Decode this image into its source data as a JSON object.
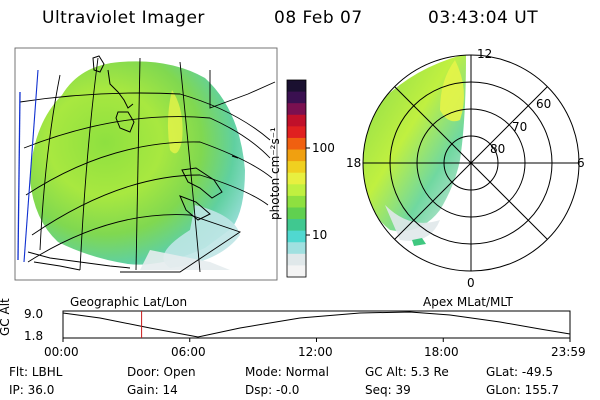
{
  "header": {
    "title": "Ultraviolet Imager",
    "date": "08 Feb 07",
    "time": "03:43:04 UT"
  },
  "colorbar": {
    "unit_label": "photon cm⁻²s⁻¹",
    "tick_labels": [
      "100",
      "10"
    ],
    "tick_values": [
      100,
      10
    ],
    "colors": [
      "#1a1030",
      "#3a1050",
      "#7a1050",
      "#c0102a",
      "#e02020",
      "#f06010",
      "#f0a010",
      "#f0d020",
      "#e8f040",
      "#c0f040",
      "#8ee040",
      "#60d050",
      "#40c890",
      "#50d8d0",
      "#a0e0e0",
      "#e0e8ea",
      "#f4f4f4"
    ]
  },
  "left_panel": {
    "caption": "Geographic Lat/Lon"
  },
  "right_panel": {
    "caption": "Apex MLat/MLT",
    "mlt_labels": [
      "12",
      "18",
      "6",
      "0"
    ],
    "lat_labels": [
      "60",
      "70",
      "80"
    ]
  },
  "timeline": {
    "y_label": "GC Alt",
    "y_ticks": [
      "9.0",
      "1.8"
    ],
    "x_ticks": [
      "00:00",
      "06:00",
      "12:00",
      "18:00",
      "23:59"
    ],
    "current_time_hours": 3.72
  },
  "info": {
    "flt_label": "Flt:",
    "flt_value": "LBHL",
    "ip_label": "IP:",
    "ip_value": "36.0",
    "door_label": "Door:",
    "door_value": "Open",
    "gain_label": "Gain:",
    "gain_value": "14",
    "mode_label": "Mode:",
    "mode_value": "Normal",
    "dsp_label": "Dsp:",
    "dsp_value": "-0.0",
    "gcalt_label": "GC Alt:",
    "gcalt_value": "5.3 Re",
    "seq_label": "Seq:",
    "seq_value": "39",
    "glat_label": "GLat:",
    "glat_value": "-49.5",
    "glon_label": "GLon:",
    "glon_value": "155.7"
  }
}
